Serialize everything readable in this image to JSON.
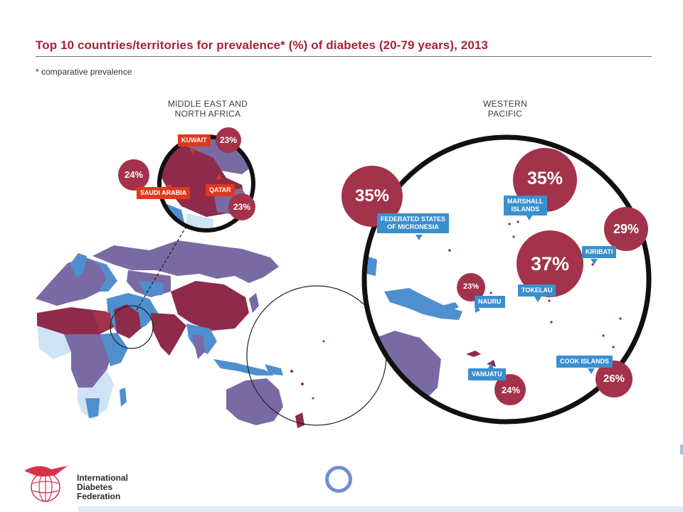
{
  "header": {
    "title": "Top 10 countries/territories for prevalence* (%) of diabetes (20-79 years), 2013",
    "footnote": "* comparative prevalence"
  },
  "regions": {
    "mena": [
      "MIDDLE EAST AND",
      "NORTH AFRICA"
    ],
    "wp": [
      "WESTERN",
      "PACIFIC"
    ]
  },
  "countries": [
    {
      "id": "kuwait",
      "name": "KUWAIT",
      "prevalence": "23%",
      "value": 23
    },
    {
      "id": "saudi-arabia",
      "name": "SAUDI ARABIA",
      "prevalence": "24%",
      "value": 24
    },
    {
      "id": "qatar",
      "name": "QATAR",
      "prevalence": "23%",
      "value": 23
    },
    {
      "id": "micronesia",
      "name_lines": [
        "FEDERATED STATES",
        "OF MICRONESIA"
      ],
      "prevalence": "35%",
      "value": 35
    },
    {
      "id": "marshall-islands",
      "name_lines": [
        "MARSHALL",
        "ISLANDS"
      ],
      "prevalence": "35%",
      "value": 35
    },
    {
      "id": "kiribati",
      "name": "KIRIBATI",
      "prevalence": "29%",
      "value": 29
    },
    {
      "id": "tokelau",
      "name": "TOKELAU",
      "prevalence": "37%",
      "value": 37
    },
    {
      "id": "nauru",
      "name": "NAURU",
      "prevalence": "23%",
      "value": 23
    },
    {
      "id": "vanuatu",
      "name": "VANUATU",
      "prevalence": "24%",
      "value": 24
    },
    {
      "id": "cook-islands",
      "name": "COOK ISLANDS",
      "prevalence": "26%",
      "value": 26
    }
  ],
  "logo": {
    "lines": [
      "International",
      "Diabetes",
      "Federation"
    ]
  },
  "colors": {
    "title": "#a8223a",
    "bubble": "#a3334a",
    "label_blue": "#3a8fcf",
    "label_red": "#e0381b",
    "land_purple": "#7a6aa3",
    "land_dark": "#8e2a4a",
    "land_blue": "#4f8fcf",
    "land_light": "#cfe3f5"
  }
}
